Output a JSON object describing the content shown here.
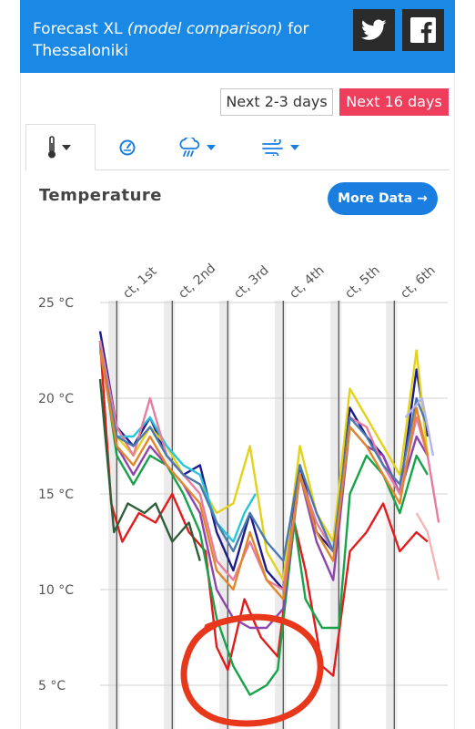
{
  "header": {
    "title_a": "Forecast XL ",
    "title_em": "(model comparison)",
    "title_b": " for",
    "title_c": "Thessaloniki"
  },
  "social": [
    "twitter-icon",
    "facebook-icon"
  ],
  "range": {
    "short_label": "Next 2-3 days",
    "long_label": "Next 16 days"
  },
  "tabs": [
    "thermometer-icon",
    "pressure-gauge-icon",
    "rain-cloud-icon",
    "wind-icon"
  ],
  "section": {
    "title": "Temperature",
    "more_label": "More Data →"
  },
  "colors": {
    "accent": "#1a89e6",
    "active_range": "#ef3d5c",
    "annotation": "#e8381c"
  },
  "chart_data": {
    "type": "line",
    "x_unit": "days into forecast",
    "xlim": [
      0,
      6.1
    ],
    "ylim": [
      3,
      25
    ],
    "y_ticks": [
      5,
      10,
      15,
      20,
      25
    ],
    "y_tick_labels": [
      "5 °C",
      "10 °C",
      "15 °C",
      "20 °C",
      "25 °C"
    ],
    "day_ticks": [
      0.3,
      1.3,
      2.3,
      3.3,
      4.3,
      5.3
    ],
    "day_labels": [
      "ct, 1st",
      "ct, 2nd",
      "ct, 3rd",
      "ct, 4th",
      "ct, 5th",
      "ct, 6th"
    ],
    "night_bands": [
      [
        0.15,
        0.35
      ],
      [
        1.15,
        1.35
      ],
      [
        2.15,
        2.35
      ],
      [
        3.15,
        3.35
      ],
      [
        4.15,
        4.35
      ],
      [
        5.15,
        5.35
      ]
    ],
    "series": [
      {
        "color": "#1c1c8c",
        "values": [
          [
            0,
            23.5
          ],
          [
            0.3,
            18.5
          ],
          [
            0.6,
            17.5
          ],
          [
            0.9,
            19
          ],
          [
            1.2,
            17
          ],
          [
            1.5,
            16
          ],
          [
            1.8,
            16.5
          ],
          [
            2.1,
            13
          ],
          [
            2.4,
            11
          ],
          [
            2.7,
            14
          ],
          [
            3.0,
            11
          ],
          [
            3.3,
            10
          ],
          [
            3.6,
            16.5
          ],
          [
            3.9,
            13
          ],
          [
            4.2,
            12
          ],
          [
            4.5,
            19.5
          ],
          [
            4.8,
            18
          ],
          [
            5.1,
            17
          ],
          [
            5.4,
            15
          ],
          [
            5.7,
            21.5
          ],
          [
            5.9,
            18
          ]
        ]
      },
      {
        "color": "#e3d21a",
        "values": [
          [
            0,
            22.5
          ],
          [
            0.3,
            18
          ],
          [
            0.6,
            17
          ],
          [
            0.9,
            18.5
          ],
          [
            1.2,
            17.5
          ],
          [
            1.5,
            16
          ],
          [
            1.8,
            15.5
          ],
          [
            2.1,
            14
          ],
          [
            2.4,
            14.5
          ],
          [
            2.7,
            17.5
          ],
          [
            3.0,
            12
          ],
          [
            3.3,
            10.5
          ],
          [
            3.6,
            17.5
          ],
          [
            3.9,
            14
          ],
          [
            4.2,
            12.5
          ],
          [
            4.5,
            20.5
          ],
          [
            4.8,
            19
          ],
          [
            5.1,
            17.5
          ],
          [
            5.4,
            16
          ],
          [
            5.7,
            22.5
          ],
          [
            5.9,
            17
          ]
        ]
      },
      {
        "color": "#e31b1b",
        "values": [
          [
            0,
            23
          ],
          [
            0.2,
            14.5
          ],
          [
            0.4,
            12.5
          ],
          [
            0.7,
            14
          ],
          [
            1.0,
            13.5
          ],
          [
            1.3,
            15
          ],
          [
            1.6,
            13
          ],
          [
            1.9,
            12
          ],
          [
            2.1,
            7
          ],
          [
            2.3,
            5.8
          ],
          [
            2.6,
            9.5
          ],
          [
            2.9,
            7.5
          ],
          [
            3.2,
            6.5
          ],
          [
            3.5,
            13.5
          ],
          [
            3.7,
            11
          ],
          [
            4.0,
            6
          ],
          [
            4.2,
            5.5
          ],
          [
            4.5,
            12
          ],
          [
            4.8,
            13
          ],
          [
            5.1,
            14.5
          ],
          [
            5.4,
            12
          ],
          [
            5.7,
            13
          ],
          [
            5.9,
            12.5
          ]
        ]
      },
      {
        "color": "#16a34a",
        "values": [
          [
            0,
            23
          ],
          [
            0.3,
            17
          ],
          [
            0.6,
            15.5
          ],
          [
            0.9,
            17
          ],
          [
            1.2,
            16.5
          ],
          [
            1.5,
            15
          ],
          [
            1.8,
            13
          ],
          [
            2.1,
            8.5
          ],
          [
            2.4,
            6
          ],
          [
            2.7,
            4.5
          ],
          [
            3.0,
            5
          ],
          [
            3.2,
            5.8
          ],
          [
            3.5,
            13.5
          ],
          [
            3.7,
            9.5
          ],
          [
            4.0,
            8
          ],
          [
            4.3,
            8
          ],
          [
            4.5,
            15
          ],
          [
            4.8,
            17
          ],
          [
            5.1,
            16
          ],
          [
            5.4,
            14
          ],
          [
            5.7,
            17
          ],
          [
            5.9,
            16
          ]
        ]
      },
      {
        "color": "#8e44ad",
        "values": [
          [
            0,
            23
          ],
          [
            0.3,
            17.5
          ],
          [
            0.6,
            16
          ],
          [
            0.9,
            17.5
          ],
          [
            1.2,
            16.5
          ],
          [
            1.5,
            15.5
          ],
          [
            1.8,
            14
          ],
          [
            2.1,
            10
          ],
          [
            2.4,
            8.5
          ],
          [
            2.7,
            8
          ],
          [
            3.0,
            8
          ],
          [
            3.3,
            9
          ],
          [
            3.6,
            16
          ],
          [
            3.9,
            12.5
          ],
          [
            4.2,
            10.5
          ],
          [
            4.5,
            18.5
          ],
          [
            4.8,
            17.5
          ],
          [
            5.1,
            17
          ],
          [
            5.4,
            15
          ],
          [
            5.7,
            18
          ],
          [
            5.9,
            17
          ]
        ]
      },
      {
        "color": "#2f5e3a",
        "values": [
          [
            0,
            21
          ],
          [
            0.25,
            13
          ],
          [
            0.5,
            14.5
          ],
          [
            0.8,
            14
          ],
          [
            1.0,
            14.5
          ],
          [
            1.3,
            12.5
          ],
          [
            1.6,
            13.5
          ],
          [
            1.8,
            11.5
          ]
        ]
      },
      {
        "color": "#26c6da",
        "values": [
          [
            0,
            23
          ],
          [
            0.3,
            18
          ],
          [
            0.6,
            18
          ],
          [
            0.9,
            19
          ],
          [
            1.2,
            17.5
          ],
          [
            1.5,
            16.5
          ],
          [
            1.8,
            16
          ],
          [
            2.1,
            13.5
          ],
          [
            2.4,
            12.5
          ],
          [
            2.6,
            14
          ],
          [
            2.8,
            15
          ]
        ]
      },
      {
        "color": "#e87ca0",
        "values": [
          [
            0,
            23
          ],
          [
            0.3,
            18.5
          ],
          [
            0.6,
            17
          ],
          [
            0.9,
            20
          ],
          [
            1.2,
            17
          ],
          [
            1.5,
            16
          ],
          [
            1.8,
            15
          ],
          [
            2.1,
            11.5
          ],
          [
            2.4,
            10.5
          ],
          [
            2.7,
            12.5
          ],
          [
            3.0,
            10.5
          ],
          [
            3.3,
            10
          ],
          [
            3.6,
            16
          ],
          [
            3.9,
            13.5
          ],
          [
            4.2,
            12
          ],
          [
            4.5,
            19
          ],
          [
            4.8,
            18.5
          ],
          [
            5.1,
            16.5
          ],
          [
            5.4,
            15
          ],
          [
            5.7,
            19
          ],
          [
            5.9,
            17
          ],
          [
            6.1,
            13.5
          ]
        ]
      },
      {
        "color": "#4a78b0",
        "values": [
          [
            0,
            22.5
          ],
          [
            0.3,
            18
          ],
          [
            0.6,
            17.5
          ],
          [
            0.9,
            18.5
          ],
          [
            1.2,
            17
          ],
          [
            1.5,
            16
          ],
          [
            1.8,
            15.5
          ],
          [
            2.1,
            13.5
          ],
          [
            2.4,
            12
          ],
          [
            2.7,
            14
          ],
          [
            3.0,
            12.5
          ],
          [
            3.3,
            11.5
          ],
          [
            3.6,
            16.5
          ],
          [
            3.9,
            14
          ],
          [
            4.2,
            12
          ],
          [
            4.5,
            19
          ],
          [
            4.8,
            18
          ],
          [
            5.1,
            16.5
          ],
          [
            5.4,
            15.5
          ],
          [
            5.7,
            20
          ],
          [
            5.9,
            18.5
          ]
        ]
      },
      {
        "color": "#e2862a",
        "values": [
          [
            0,
            22.5
          ],
          [
            0.3,
            17.5
          ],
          [
            0.6,
            16.5
          ],
          [
            0.9,
            18
          ],
          [
            1.2,
            16.5
          ],
          [
            1.5,
            15.5
          ],
          [
            1.8,
            14.5
          ],
          [
            2.1,
            11
          ],
          [
            2.4,
            10
          ],
          [
            2.7,
            13
          ],
          [
            3.0,
            10.5
          ],
          [
            3.3,
            9.5
          ],
          [
            3.6,
            16
          ],
          [
            3.9,
            13
          ],
          [
            4.2,
            11.5
          ],
          [
            4.5,
            18.5
          ],
          [
            4.8,
            17.5
          ],
          [
            5.1,
            16
          ],
          [
            5.4,
            14.5
          ],
          [
            5.7,
            19.5
          ],
          [
            5.9,
            17
          ]
        ]
      },
      {
        "color": "#b3b3ef",
        "values": [
          [
            5.5,
            19
          ],
          [
            5.8,
            20
          ],
          [
            6.0,
            17
          ]
        ]
      },
      {
        "color": "#f4b6b6",
        "values": [
          [
            5.7,
            14
          ],
          [
            5.9,
            13
          ],
          [
            6.1,
            10.5
          ]
        ]
      }
    ]
  }
}
